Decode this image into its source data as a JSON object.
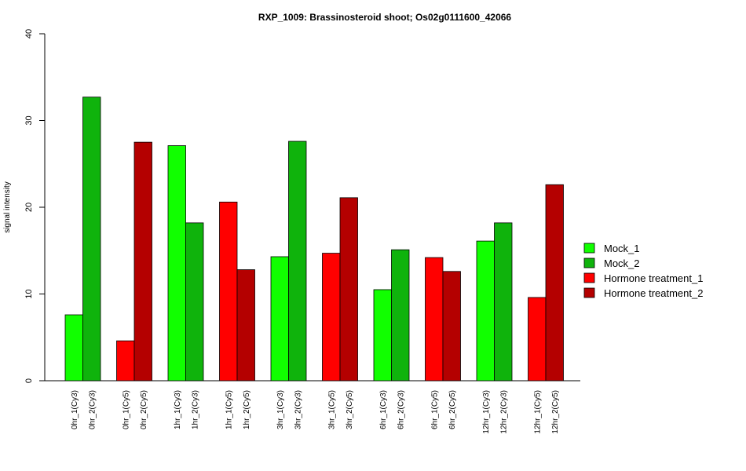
{
  "chart_data": {
    "type": "bar",
    "title": "RXP_1009: Brassinosteroid shoot; Os02g0111600_42066",
    "ylabel": "signal intensity",
    "xlabel": "",
    "ylim": [
      0,
      40
    ],
    "yticks": [
      0,
      10,
      20,
      30,
      40
    ],
    "grid": false,
    "legend_position": "right",
    "series": [
      {
        "name": "Mock_1",
        "color": "#11ff00"
      },
      {
        "name": "Mock_2",
        "color": "#0fb30c"
      },
      {
        "name": "Hormone treatment_1",
        "color": "#ff0000"
      },
      {
        "name": "Hormone treatment_2",
        "color": "#b40000"
      }
    ],
    "groups": [
      {
        "bars": [
          {
            "label": "0hr_1(Cy3)",
            "value": 7.6,
            "series": 0
          },
          {
            "label": "0hr_2(Cy3)",
            "value": 32.7,
            "series": 1
          }
        ]
      },
      {
        "bars": [
          {
            "label": "0hr_1(Cy5)",
            "value": 4.6,
            "series": 2
          },
          {
            "label": "0hr_2(Cy5)",
            "value": 27.5,
            "series": 3
          }
        ]
      },
      {
        "bars": [
          {
            "label": "1hr_1(Cy3)",
            "value": 27.1,
            "series": 0
          },
          {
            "label": "1hr_2(Cy3)",
            "value": 18.2,
            "series": 1
          }
        ]
      },
      {
        "bars": [
          {
            "label": "1hr_1(Cy5)",
            "value": 20.6,
            "series": 2
          },
          {
            "label": "1hr_2(Cy5)",
            "value": 12.8,
            "series": 3
          }
        ]
      },
      {
        "bars": [
          {
            "label": "3hr_1(Cy3)",
            "value": 14.3,
            "series": 0
          },
          {
            "label": "3hr_2(Cy3)",
            "value": 27.6,
            "series": 1
          }
        ]
      },
      {
        "bars": [
          {
            "label": "3hr_1(Cy5)",
            "value": 14.7,
            "series": 2
          },
          {
            "label": "3hr_2(Cy5)",
            "value": 21.1,
            "series": 3
          }
        ]
      },
      {
        "bars": [
          {
            "label": "6hr_1(Cy3)",
            "value": 10.5,
            "series": 0
          },
          {
            "label": "6hr_2(Cy3)",
            "value": 15.1,
            "series": 1
          }
        ]
      },
      {
        "bars": [
          {
            "label": "6hr_1(Cy5)",
            "value": 14.2,
            "series": 2
          },
          {
            "label": "6hr_2(Cy5)",
            "value": 12.6,
            "series": 3
          }
        ]
      },
      {
        "bars": [
          {
            "label": "12hr_1(Cy3)",
            "value": 16.1,
            "series": 0
          },
          {
            "label": "12hr_2(Cy3)",
            "value": 18.2,
            "series": 1
          }
        ]
      },
      {
        "bars": [
          {
            "label": "12hr_1(Cy5)",
            "value": 9.6,
            "series": 2
          },
          {
            "label": "12hr_2(Cy5)",
            "value": 22.6,
            "series": 3
          }
        ]
      }
    ]
  }
}
